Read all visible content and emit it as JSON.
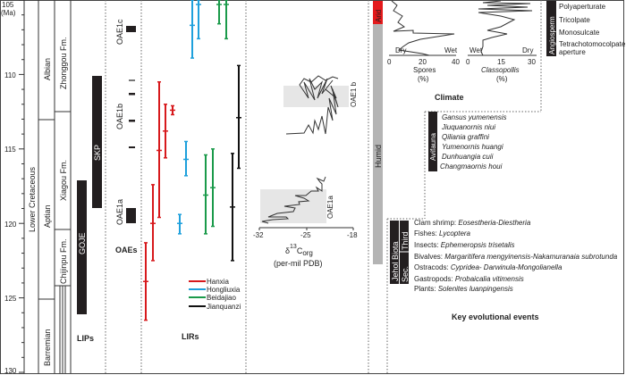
{
  "age_axis": {
    "unit": "(Ma)",
    "ticks": [
      "105",
      "110",
      "115",
      "120",
      "125",
      "130"
    ],
    "range": [
      105,
      130
    ]
  },
  "stratigraphy": {
    "series": "Lower Cretaceous",
    "stages": [
      "Albian",
      "Aptian",
      "Barremian"
    ],
    "formations": [
      "Zhonggou Fm.",
      "Xiagou Fm.",
      "Chijinpu Fm."
    ]
  },
  "lips": {
    "title": "LIPs",
    "bars": [
      {
        "label": "GOJE",
        "from": 117,
        "to": 126
      },
      {
        "label": "SKP",
        "from": 110,
        "to": 119
      }
    ]
  },
  "oaes": {
    "title": "OAEs",
    "labels": [
      "OAE1c",
      "OAE1b",
      "OAE1a"
    ]
  },
  "lirs": {
    "title": "LIRs",
    "series": [
      {
        "name": "Hanxia",
        "color": "#d7191c",
        "bars": [
          [
            121.3,
            123.9,
            126.5
          ],
          [
            117.4,
            120.0,
            122.5
          ],
          [
            110.5,
            115.1,
            119.6
          ],
          [
            112.0,
            113.8,
            115.6
          ],
          [
            112.1,
            112.4,
            112.7
          ]
        ]
      },
      {
        "name": "Hongliuxia",
        "color": "#1ea0dc",
        "bars": [
          [
            105,
            106.7,
            108.9
          ],
          [
            105,
            105.3,
            107.6
          ],
          [
            114.5,
            115.7,
            116.8
          ],
          [
            119.4,
            120.0,
            120.7
          ]
        ]
      },
      {
        "name": "Beidajiao",
        "color": "#1a9a4a",
        "bars": [
          [
            105,
            105.3,
            106.6
          ],
          [
            105,
            105.3,
            107.6
          ],
          [
            115.4,
            118.1,
            120.7
          ],
          [
            115.0,
            117.6,
            120.2
          ]
        ]
      },
      {
        "name": "Jianquanzi",
        "color": "#111111",
        "bars": [
          [
            115.3,
            118.9,
            122.5
          ],
          [
            109.4,
            112.9,
            116.3
          ]
        ]
      }
    ]
  },
  "carbon": {
    "ticks": [
      "-32",
      "-25",
      "-18"
    ],
    "title_main": "δ",
    "title_sup": "13",
    "title_sub": "C",
    "title_org": "org",
    "units": "(per-mil PDB)",
    "labels": [
      "OAE1 b",
      "OAE1a"
    ]
  },
  "climate": {
    "title": "Climate",
    "arid": "Arid",
    "humid": "Humid",
    "spores": {
      "label": "Spores",
      "unit": "(%)",
      "ticks": [
        "0",
        "20",
        "40"
      ],
      "left": "Dry",
      "right": "Wet"
    },
    "classopollis": {
      "label": "Classopollis",
      "unit": "(%)",
      "ticks": [
        "0",
        "15",
        "30"
      ],
      "left": "Wet",
      "right": "Dry"
    }
  },
  "angiosperm": {
    "title": "Angiosperm",
    "items": [
      "Polyaperturate",
      "Tricolpate",
      "Monosulcate",
      "Tetrachotomocolpate",
      "aperture"
    ]
  },
  "avifauna": {
    "title": "Avifauna",
    "items": [
      "Gansus yumenensis",
      "Jiuquanornis niui",
      "Qiliania graffini",
      "Yumenornis huangi",
      "Dunhuangia cuii",
      "Changmaornis houi"
    ]
  },
  "jehol": {
    "title": "Jehol Biota",
    "sec": "Sec.",
    "third": "Third",
    "items": [
      {
        "group": "Clam shrimp: ",
        "taxa": "Eosestheria-Diestheria"
      },
      {
        "group": "Fishes: ",
        "taxa": "Lycoptera"
      },
      {
        "group": "Insects: ",
        "taxa": "Ephemeropsis trisetalis"
      },
      {
        "group": "Bivalves: ",
        "taxa": "Margaritifera mengyinensis-Nakamuranaia subrotunda"
      },
      {
        "group": "Ostracods: ",
        "taxa": "Cypridea- Darwinula-Mongolianella"
      },
      {
        "group": "Gastropods: ",
        "taxa": "Probaicalia vitimensis"
      },
      {
        "group": "Plants: ",
        "taxa": "Solenites luanpingensis"
      }
    ]
  },
  "key_events_title": "Key evolutional events"
}
